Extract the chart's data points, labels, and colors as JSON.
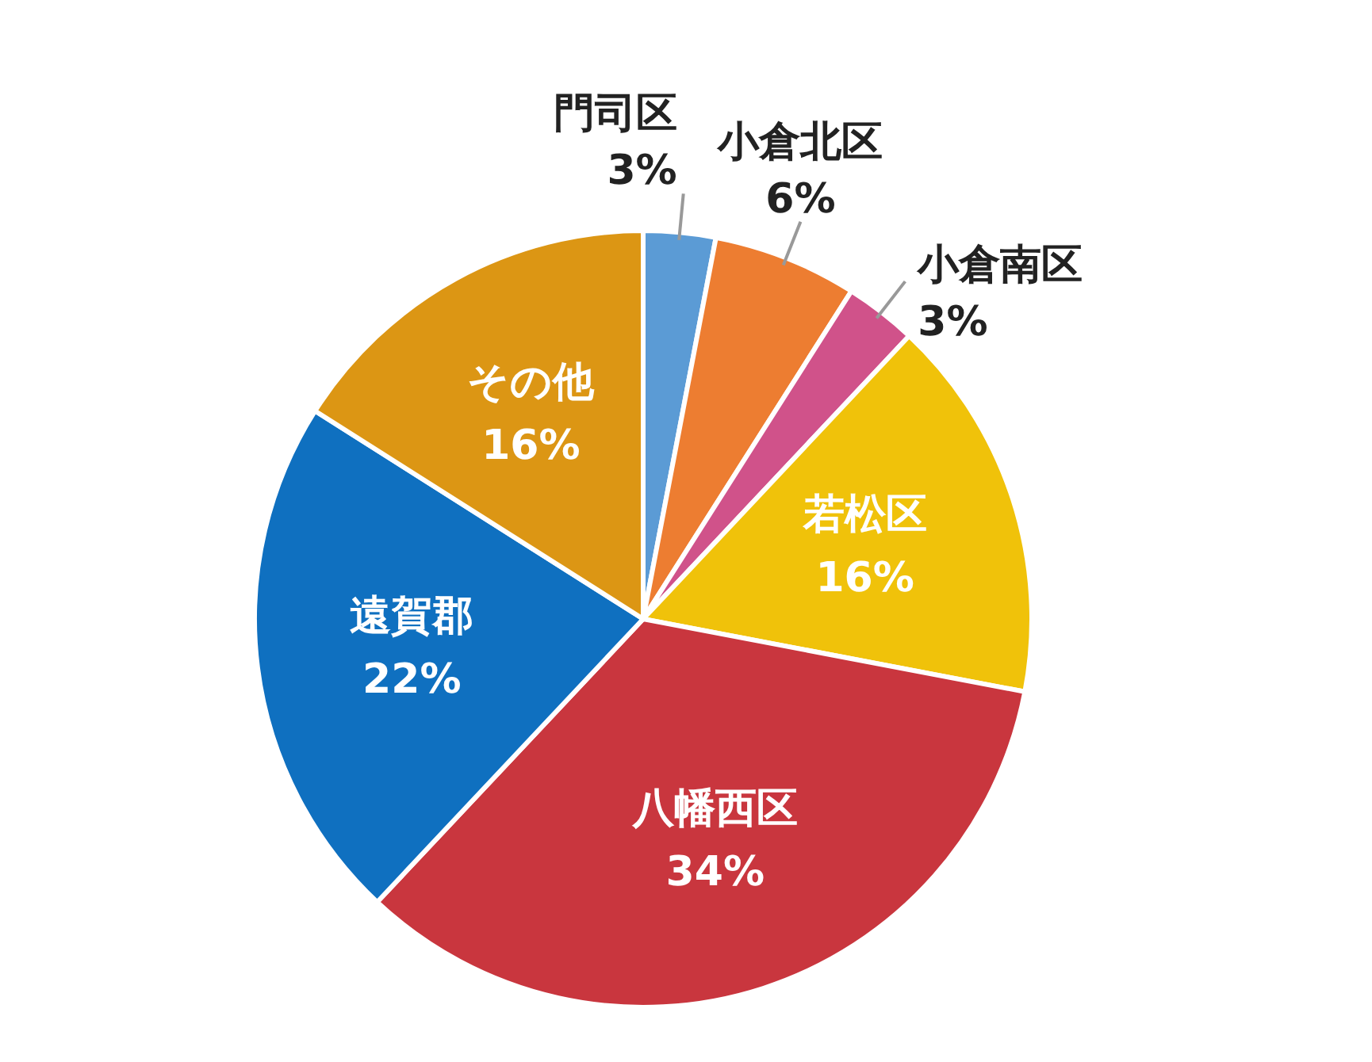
{
  "chart_data": {
    "type": "pie",
    "categories": [
      "門司区",
      "小倉北区",
      "小倉南区",
      "若松区",
      "八幡西区",
      "遠賀郡",
      "その他"
    ],
    "values": [
      3,
      6,
      3,
      16,
      34,
      22,
      16
    ],
    "value_labels": [
      "3%",
      "6%",
      "3%",
      "16%",
      "34%",
      "22%",
      "16%"
    ],
    "colors": [
      "#5b9bd5",
      "#ed7d31",
      "#d0528a",
      "#f0c20a",
      "#c9363e",
      "#0f70c0",
      "#dc9614"
    ]
  }
}
